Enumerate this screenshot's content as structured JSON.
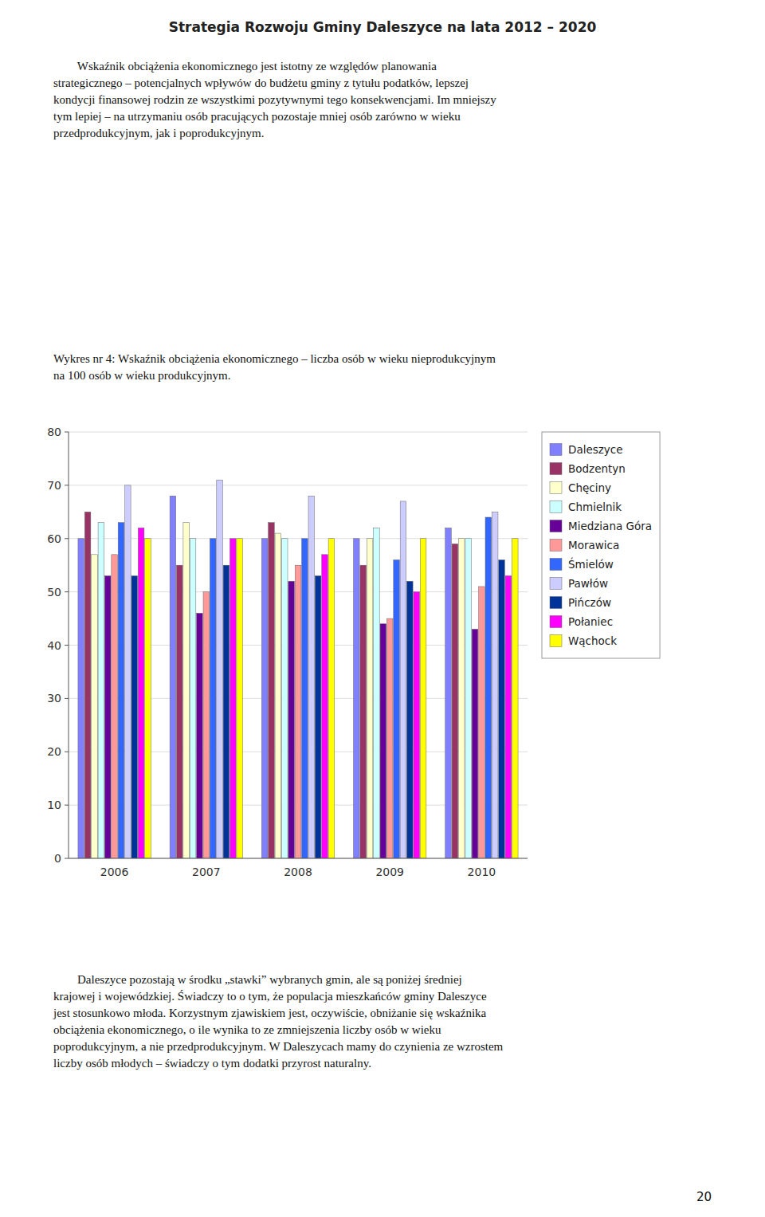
{
  "chart_data": {
    "type": "bar",
    "title": "Strategia Rozwoju Gminy Daleszyce na lata 2012 – 2020",
    "categories": [
      "2006",
      "2007",
      "2008",
      "2009",
      "2010"
    ],
    "series": [
      {
        "name": "Daleszyce",
        "color": "#8080FF",
        "values": [
          60,
          68,
          60,
          60,
          62
        ]
      },
      {
        "name": "Bodzentyn",
        "color": "#993366",
        "values": [
          65,
          55,
          63,
          55,
          59
        ]
      },
      {
        "name": "Chęciny",
        "color": "#FFFFCC",
        "values": [
          57,
          63,
          61,
          60,
          60
        ]
      },
      {
        "name": "Chmielnik",
        "color": "#CCFFFF",
        "values": [
          63,
          60,
          60,
          62,
          60
        ]
      },
      {
        "name": "Miedziana Góra",
        "color": "#660099",
        "values": [
          53,
          46,
          52,
          44,
          43
        ]
      },
      {
        "name": "Morawica",
        "color": "#FF9999",
        "values": [
          57,
          50,
          55,
          45,
          51
        ]
      },
      {
        "name": "Śmielów",
        "color": "#3366FF",
        "values": [
          63,
          60,
          60,
          56,
          64
        ]
      },
      {
        "name": "Pawłów",
        "color": "#CCCCFF",
        "values": [
          70,
          71,
          68,
          67,
          65
        ]
      },
      {
        "name": "Pińczów",
        "color": "#003399",
        "values": [
          53,
          55,
          53,
          52,
          56
        ]
      },
      {
        "name": "Połaniec",
        "color": "#FF00FF",
        "values": [
          62,
          60,
          57,
          50,
          53
        ]
      },
      {
        "name": "Wąchock",
        "color": "#FFFF00",
        "values": [
          60,
          60,
          60,
          60,
          60
        ]
      }
    ],
    "ylim": [
      0,
      80
    ],
    "yticks": [
      0,
      10,
      20,
      30,
      40,
      50,
      60,
      70,
      80
    ],
    "grid": true,
    "legend": "right",
    "annotations": [
      [
        "        Wskaźnik obciążenia ekonomicznego jest istotny ze względów planowania",
        "strategicznego – potencjalnych wpływów do budżetu gminy z tytułu podatków, lepszej",
        "kondycji finansowej rodzin ze wszystkimi pozytywnymi tego konsekwencjami. Im mniejszy",
        "tym lepiej – na utrzymaniu osób pracujących pozostaje mniej osób zarówno w wieku",
        "przedprodukcyjnym, jak i poprodukcyjnym."
      ],
      [
        "Wykres nr 4: Wskaźnik obciążenia ekonomicznego – liczba osób w wieku nieprodukcyjnym",
        "na 100 osób w wieku produkcyjnym."
      ],
      [
        "        Daleszyce pozostają w środku „stawki” wybranych gmin, ale są poniżej średniej",
        "krajowej i wojewódzkiej. Świadczy to o tym, że populacja mieszkańców gminy Daleszyce",
        "jest stosunkowo młoda. Korzystnym zjawiskiem jest, oczywiście, obniżanie się wskaźnika",
        "obciążenia ekonomicznego, o ile wynika to ze zmniejszenia liczby osób w wieku",
        "poprodukcyjnym, a nie przedprodukcyjnym. W Daleszycach mamy do czynienia ze wzrostem",
        "liczby osób młodych – świadczy o tym dodatki przyrost naturalny."
      ],
      [
        "20"
      ]
    ]
  }
}
